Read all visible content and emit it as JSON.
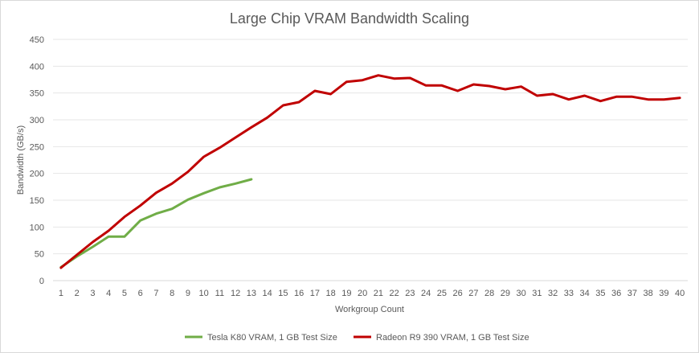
{
  "chart_data": {
    "type": "line",
    "title": "Large Chip VRAM Bandwidth Scaling",
    "xlabel": "Workgroup Count",
    "ylabel": "Bandwidth (GB/s)",
    "ylim": [
      0,
      450
    ],
    "yticks": [
      0,
      50,
      100,
      150,
      200,
      250,
      300,
      350,
      400,
      450
    ],
    "x": [
      1,
      2,
      3,
      4,
      5,
      6,
      7,
      8,
      9,
      10,
      11,
      12,
      13,
      14,
      15,
      16,
      17,
      18,
      19,
      20,
      21,
      22,
      23,
      24,
      25,
      26,
      27,
      28,
      29,
      30,
      31,
      32,
      33,
      34,
      35,
      36,
      37,
      38,
      39,
      40
    ],
    "grid": true,
    "legend_position": "bottom",
    "series": [
      {
        "name": "Tesla K80 VRAM, 1 GB Test Size",
        "color": "#70ad47",
        "x": [
          1,
          2,
          3,
          4,
          5,
          6,
          7,
          8,
          9,
          10,
          11,
          12,
          13
        ],
        "values": [
          25,
          45,
          63,
          82,
          82,
          112,
          125,
          134,
          151,
          163,
          174,
          181,
          189
        ]
      },
      {
        "name": "Radeon R9 390 VRAM, 1 GB Test Size",
        "color": "#c00000",
        "x": [
          1,
          2,
          3,
          4,
          5,
          6,
          7,
          8,
          9,
          10,
          11,
          12,
          13,
          14,
          15,
          16,
          17,
          18,
          19,
          20,
          21,
          22,
          23,
          24,
          25,
          26,
          27,
          28,
          29,
          30,
          31,
          32,
          33,
          34,
          35,
          36,
          37,
          38,
          39,
          40
        ],
        "values": [
          24,
          48,
          72,
          93,
          119,
          140,
          164,
          181,
          203,
          231,
          248,
          267,
          286,
          304,
          327,
          333,
          354,
          348,
          371,
          374,
          383,
          377,
          378,
          364,
          364,
          354,
          366,
          363,
          357,
          362,
          345,
          348,
          338,
          345,
          335,
          343,
          343,
          338,
          338,
          341
        ]
      }
    ]
  }
}
